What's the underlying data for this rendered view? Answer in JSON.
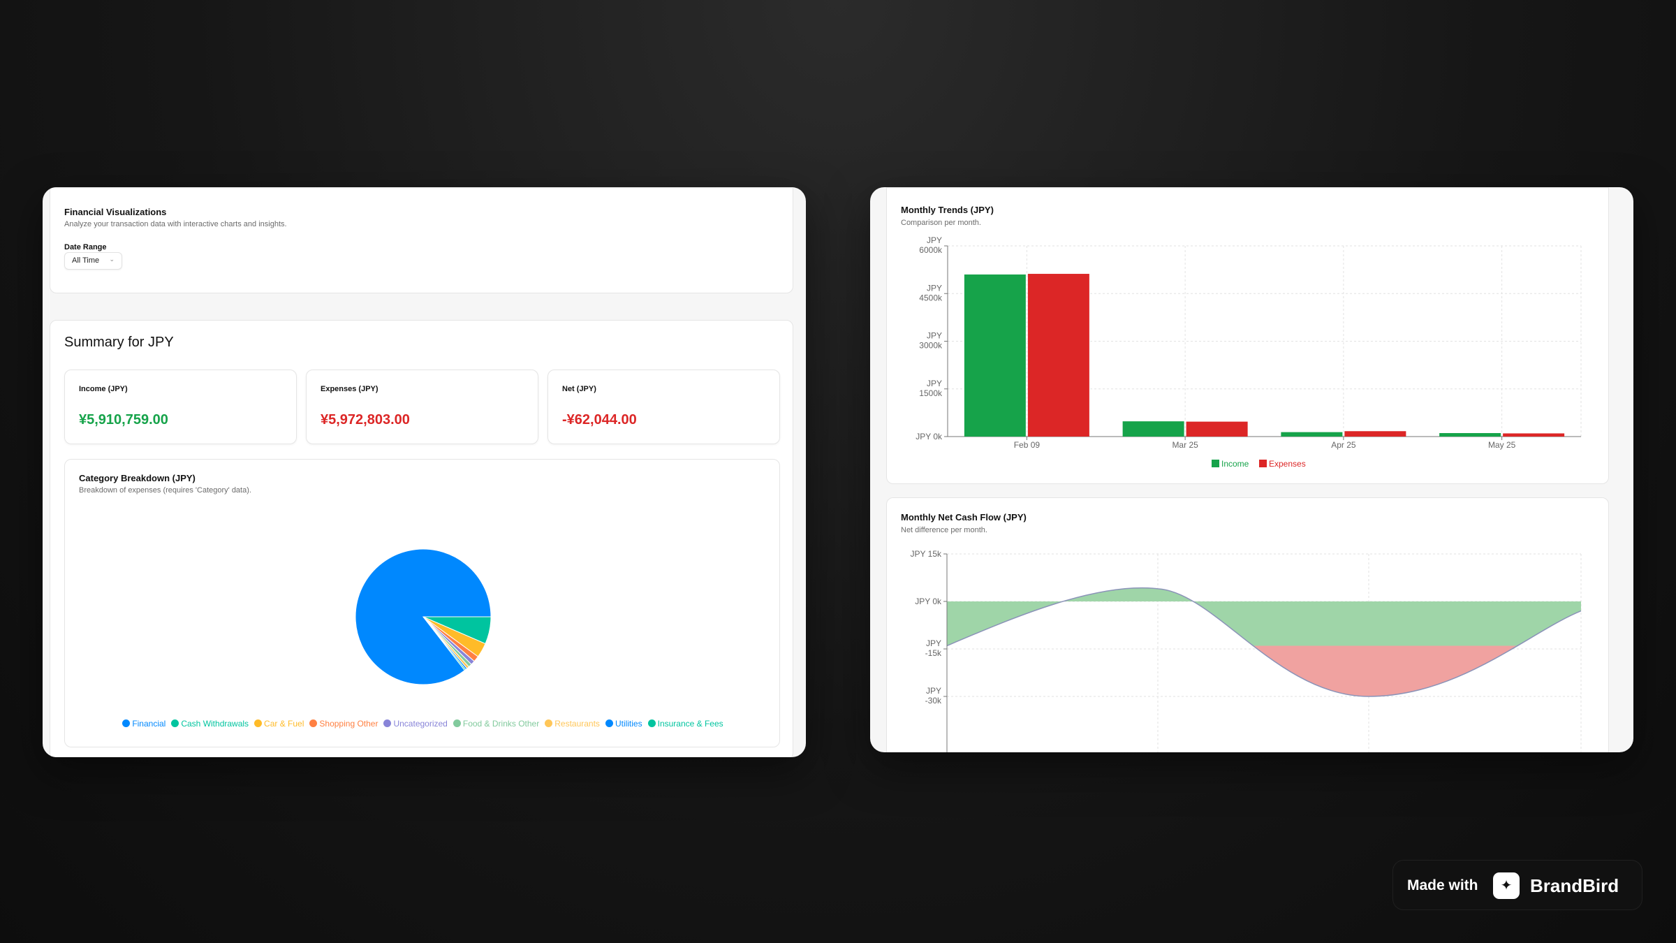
{
  "left": {
    "header": {
      "title": "Financial Visualizations",
      "subtitle": "Analyze your transaction data with interactive charts and insights.",
      "date_range_label": "Date Range",
      "date_range_value": "All Time"
    },
    "summary": {
      "title": "Summary for JPY",
      "income_label": "Income (JPY)",
      "income_value": "¥5,910,759.00",
      "expenses_label": "Expenses (JPY)",
      "expenses_value": "¥5,972,803.00",
      "net_label": "Net (JPY)",
      "net_value": "-¥62,044.00"
    },
    "category": {
      "title": "Category Breakdown (JPY)",
      "subtitle": "Breakdown of expenses (requires 'Category' data)."
    }
  },
  "right": {
    "trends": {
      "title": "Monthly Trends (JPY)",
      "subtitle": "Comparison per month."
    },
    "cashflow": {
      "title": "Monthly Net Cash Flow (JPY)",
      "subtitle": "Net difference per month."
    }
  },
  "colors": {
    "income": "#16a34a",
    "expense": "#dc2626",
    "area_pos": "#9fd5a8",
    "area_neg": "#f0a2a0"
  },
  "badge": {
    "made_with": "Made with",
    "brand": "BrandBird",
    "logo_icon": "brandbird-logo-icon"
  },
  "chart_data": [
    {
      "type": "pie",
      "labels": [
        "Financial",
        "Cash Withdrawals",
        "Car & Fuel",
        "Shopping Other",
        "Uncategorized",
        "Food & Drinks Other",
        "Restaurants",
        "Utilities",
        "Insurance & Fees"
      ],
      "values": [
        85.5,
        6.5,
        3.5,
        1.4,
        1.0,
        0.8,
        0.6,
        0.4,
        0.3
      ],
      "colors": [
        "#0088fe",
        "#00c49f",
        "#ffbb28",
        "#ff8042",
        "#8884d8",
        "#82ca9d",
        "#ffc658",
        "#0088fe",
        "#00c49f"
      ],
      "title": "Category Breakdown (JPY)"
    },
    {
      "type": "bar",
      "title": "Monthly Trends (JPY)",
      "categories": [
        "Feb 09",
        "Mar 25",
        "Apr 25",
        "May 25"
      ],
      "series": [
        {
          "name": "Income",
          "values": [
            5100,
            480,
            140,
            110
          ]
        },
        {
          "name": "Expenses",
          "values": [
            5120,
            470,
            170,
            100
          ]
        }
      ],
      "yticks": [
        "JPY 0k",
        "JPY 1500k",
        "JPY 3000k",
        "JPY 4500k",
        "JPY 6000k"
      ],
      "ylim": [
        0,
        6000
      ],
      "legend": "bottom",
      "grid": true
    },
    {
      "type": "area",
      "title": "Monthly Net Cash Flow (JPY)",
      "yticks": [
        "JPY 15k",
        "JPY 0k",
        "JPY -15k",
        "JPY -30k"
      ],
      "ylim": [
        -45,
        15
      ],
      "grid": true
    }
  ]
}
